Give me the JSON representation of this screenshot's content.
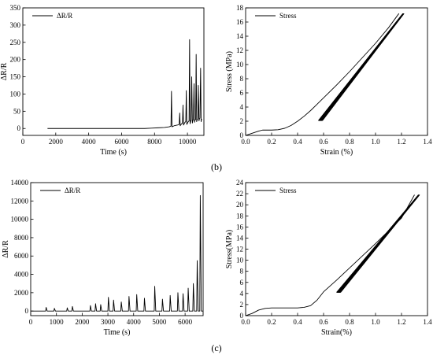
{
  "panel_labels": [
    "(b)",
    "(c)"
  ],
  "chart_data": [
    {
      "id": "b-left",
      "type": "line",
      "xlabel": "Time (s)",
      "ylabel": "ΔR/R",
      "xlim": [
        0,
        11000
      ],
      "ylim": [
        -20,
        350
      ],
      "xticks": [
        0,
        2000,
        4000,
        6000,
        8000,
        10000
      ],
      "yticks": [
        0,
        50,
        100,
        150,
        200,
        250,
        300,
        350
      ],
      "legend": {
        "position": "top-left"
      },
      "series": [
        {
          "name": "ΔR/R",
          "x": [
            1500,
            7400,
            7800,
            8200,
            8600,
            8900,
            9000,
            9030,
            9060,
            9200,
            9400,
            9500,
            9530,
            9560,
            9650,
            9700,
            9730,
            9760,
            9850,
            9900,
            9930,
            9960,
            10050,
            10100,
            10130,
            10160,
            10200,
            10230,
            10260,
            10300,
            10330,
            10360,
            10400,
            10430,
            10460,
            10500,
            10530,
            10560,
            10600,
            10630,
            10660,
            10700,
            10730,
            10760,
            10800,
            10830,
            10860
          ],
          "y": [
            0,
            0,
            1,
            2,
            3,
            5,
            7,
            108,
            5,
            8,
            10,
            12,
            45,
            8,
            14,
            16,
            68,
            10,
            18,
            20,
            110,
            12,
            20,
            22,
            258,
            14,
            22,
            24,
            150,
            16,
            24,
            25,
            130,
            18,
            25,
            26,
            215,
            20,
            26,
            28,
            125,
            22,
            28,
            30,
            175,
            20,
            28
          ]
        }
      ]
    },
    {
      "id": "b-right",
      "type": "line",
      "xlabel": "Strain (%)",
      "ylabel": "Stress (MPa)",
      "xlim": [
        0,
        1.4
      ],
      "ylim": [
        0,
        18
      ],
      "xticks": [
        0.0,
        0.2,
        0.4,
        0.6,
        0.8,
        1.0,
        1.2,
        1.4
      ],
      "yticks": [
        0,
        2,
        4,
        6,
        8,
        10,
        12,
        14,
        16,
        18
      ],
      "legend": {
        "position": "top-left"
      },
      "series": [
        {
          "name": "Stress",
          "x": [
            0.0,
            0.05,
            0.1,
            0.13,
            0.2,
            0.25,
            0.3,
            0.35,
            0.4,
            0.45,
            0.5,
            0.55,
            0.6,
            0.7,
            0.8,
            0.9,
            1.0,
            1.1,
            1.18
          ],
          "y": [
            0.0,
            0.3,
            0.6,
            0.75,
            0.75,
            0.8,
            1.0,
            1.4,
            2.0,
            2.7,
            3.5,
            4.4,
            5.3,
            7.1,
            9.0,
            11.0,
            13.0,
            15.2,
            17.2
          ]
        }
      ]
    },
    {
      "id": "c-left",
      "type": "line",
      "xlabel": "Time (s)",
      "ylabel": "ΔR/R",
      "xlim": [
        0,
        6700
      ],
      "ylim": [
        -500,
        14000
      ],
      "xticks": [
        0,
        1000,
        2000,
        3000,
        4000,
        5000,
        6000
      ],
      "yticks": [
        0,
        2000,
        4000,
        6000,
        8000,
        10000,
        12000,
        14000
      ],
      "legend": {
        "position": "top-left"
      },
      "series": [
        {
          "name": "ΔR/R",
          "x": [
            0,
            580,
            600,
            640,
            900,
            920,
            960,
            1400,
            1420,
            1460,
            1600,
            1620,
            1660,
            2300,
            2320,
            2360,
            2500,
            2520,
            2560,
            2700,
            2720,
            2760,
            3000,
            3020,
            3060,
            3200,
            3220,
            3260,
            3500,
            3520,
            3560,
            3800,
            3820,
            3860,
            4100,
            4120,
            4160,
            4400,
            4420,
            4460,
            4800,
            4820,
            4860,
            5100,
            5120,
            5160,
            5400,
            5420,
            5460,
            5700,
            5720,
            5760,
            5900,
            5920,
            5960,
            6100,
            6120,
            6160,
            6300,
            6320,
            6360,
            6450,
            6470,
            6510,
            6570,
            6590,
            6630,
            6700
          ],
          "y": [
            0,
            0,
            400,
            0,
            0,
            300,
            0,
            0,
            350,
            0,
            0,
            500,
            0,
            0,
            600,
            0,
            0,
            800,
            0,
            0,
            700,
            0,
            0,
            1500,
            0,
            0,
            1200,
            0,
            0,
            1000,
            0,
            0,
            1600,
            0,
            0,
            1800,
            0,
            0,
            1400,
            0,
            0,
            2700,
            0,
            0,
            1300,
            0,
            0,
            1700,
            0,
            0,
            2000,
            0,
            0,
            1900,
            0,
            0,
            2500,
            0,
            0,
            3000,
            0,
            0,
            5500,
            0,
            0,
            12600,
            0,
            0
          ]
        }
      ]
    },
    {
      "id": "c-right",
      "type": "line",
      "xlabel": "Strain(%)",
      "ylabel": "Stress(MPa)",
      "xlim": [
        0,
        1.4
      ],
      "ylim": [
        0,
        24
      ],
      "xticks": [
        0.0,
        0.2,
        0.4,
        0.6,
        0.8,
        1.0,
        1.2,
        1.4
      ],
      "yticks": [
        0,
        2,
        4,
        6,
        8,
        10,
        12,
        14,
        16,
        18,
        20,
        22,
        24
      ],
      "legend": {
        "position": "top-left"
      },
      "series": [
        {
          "name": "Stress",
          "x": [
            0.0,
            0.05,
            0.1,
            0.15,
            0.2,
            0.3,
            0.4,
            0.45,
            0.5,
            0.55,
            0.6,
            0.7,
            0.8,
            0.9,
            1.0,
            1.1,
            1.2,
            1.3
          ],
          "y": [
            0.0,
            0.4,
            1.0,
            1.3,
            1.4,
            1.4,
            1.4,
            1.5,
            1.8,
            2.8,
            4.3,
            6.4,
            8.6,
            10.8,
            13.0,
            15.3,
            17.6,
            21.8
          ]
        }
      ]
    }
  ],
  "loops": {
    "b-right": {
      "lo": [
        0.56,
        2.1
      ],
      "hi": [
        1.21,
        17.2
      ],
      "offset": 0.032,
      "color": "#000000"
    },
    "c-right": {
      "lo": [
        0.7,
        4.2
      ],
      "hi": [
        1.33,
        21.8
      ],
      "offset": 0.032,
      "color": "#000000"
    }
  }
}
